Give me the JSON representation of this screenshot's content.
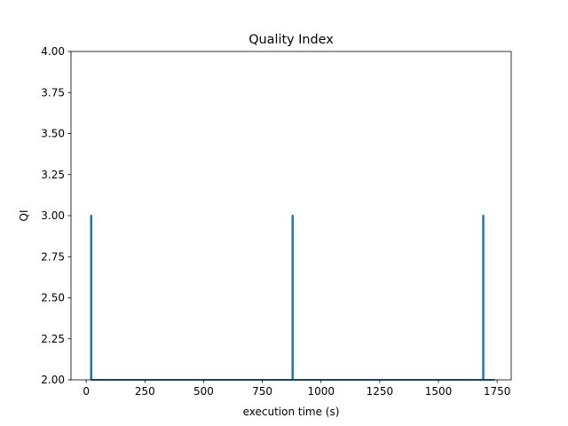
{
  "chart_data": {
    "type": "line",
    "title": "Quality Index",
    "xlabel": "execution time (s)",
    "ylabel": "QI",
    "xlim": [
      -65,
      1810
    ],
    "ylim": [
      2.0,
      4.0
    ],
    "xticks": [
      0,
      250,
      500,
      750,
      1000,
      1250,
      1500,
      1750
    ],
    "xtick_labels": [
      "0",
      "250",
      "500",
      "750",
      "1000",
      "1250",
      "1500",
      "1750"
    ],
    "yticks": [
      2.0,
      2.25,
      2.5,
      2.75,
      3.0,
      3.25,
      3.5,
      3.75,
      4.0
    ],
    "ytick_labels": [
      "2.00",
      "2.25",
      "2.50",
      "2.75",
      "3.00",
      "3.25",
      "3.50",
      "3.75",
      "4.00"
    ],
    "grid": false,
    "series": [
      {
        "color": "#1f77b4",
        "x": [
          20,
          20,
          22,
          22,
          878,
          878,
          880,
          880,
          1690,
          1690,
          1692,
          1692,
          1740
        ],
        "y": [
          2,
          3,
          3,
          2,
          2,
          3,
          3,
          2,
          2,
          3,
          3,
          2,
          2
        ]
      }
    ]
  }
}
